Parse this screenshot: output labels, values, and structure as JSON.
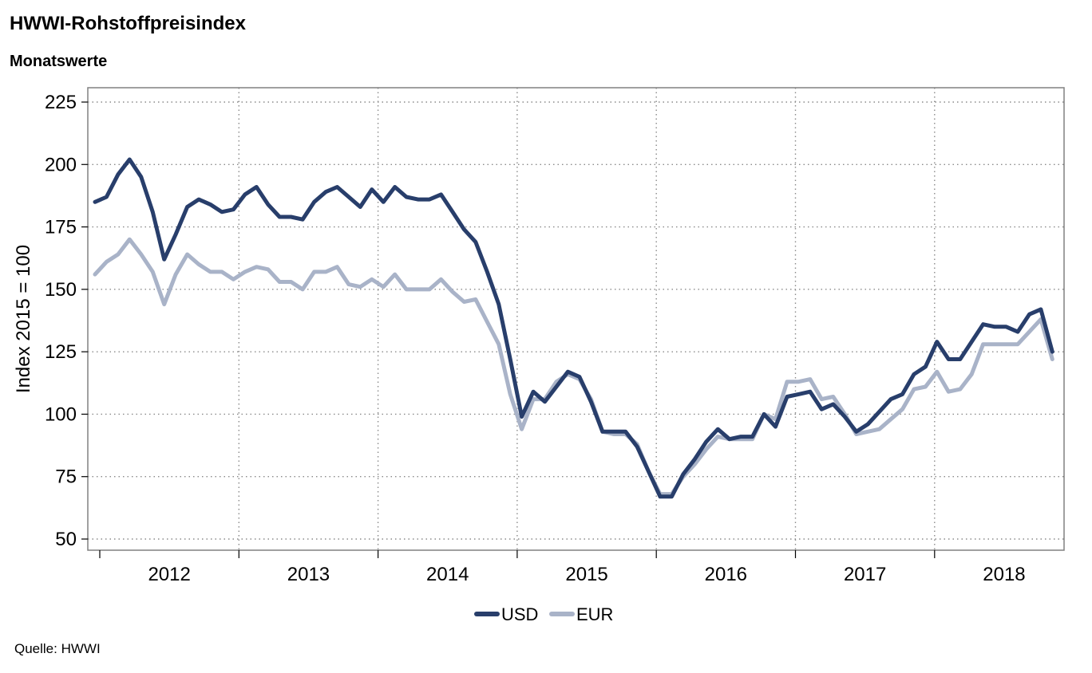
{
  "title": "HWWI-Rohstoffpreisindex",
  "subtitle": "Monatswerte",
  "source": "Quelle: HWWI",
  "chart_data": {
    "type": "line",
    "title": "HWWI-Rohstoffpreisindex",
    "subtitle": "Monatswerte",
    "xlabel": "",
    "ylabel": "Index 2015 = 100",
    "ylim": [
      45,
      230
    ],
    "yticks": [
      50,
      75,
      100,
      125,
      150,
      175,
      200,
      225
    ],
    "xticks": [
      "2012",
      "2013",
      "2014",
      "2015",
      "2016",
      "2017",
      "2018"
    ],
    "x_start": "2012-01",
    "x_end": "2018-11",
    "grid": true,
    "legend_position": "bottom",
    "colors": {
      "USD": "#283e6b",
      "EUR": "#a9b3c8"
    },
    "series": [
      {
        "name": "USD",
        "values": [
          185,
          187,
          196,
          202,
          195,
          181,
          162,
          172,
          183,
          186,
          184,
          181,
          182,
          188,
          191,
          184,
          179,
          179,
          178,
          185,
          189,
          191,
          187,
          183,
          190,
          185,
          191,
          187,
          186,
          186,
          188,
          181,
          174,
          169,
          157,
          144,
          122,
          99,
          109,
          105,
          111,
          117,
          115,
          105,
          93,
          93,
          93,
          87,
          77,
          67,
          67,
          76,
          82,
          89,
          94,
          90,
          91,
          91,
          100,
          95,
          107,
          108,
          109,
          102,
          104,
          99,
          93,
          96,
          101,
          106,
          108,
          116,
          119,
          129,
          122,
          122,
          129,
          136,
          135,
          135,
          133,
          140,
          142,
          125
        ]
      },
      {
        "name": "EUR",
        "values": [
          156,
          161,
          164,
          170,
          164,
          157,
          144,
          156,
          164,
          160,
          157,
          157,
          154,
          157,
          159,
          158,
          153,
          153,
          150,
          157,
          157,
          159,
          152,
          151,
          154,
          151,
          156,
          150,
          150,
          150,
          154,
          149,
          145,
          146,
          137,
          128,
          108,
          94,
          106,
          106,
          113,
          116,
          114,
          106,
          93,
          92,
          92,
          88,
          77,
          68,
          68,
          75,
          80,
          86,
          91,
          90,
          90,
          90,
          100,
          98,
          113,
          113,
          114,
          106,
          107,
          100,
          92,
          93,
          94,
          98,
          102,
          110,
          111,
          117,
          109,
          110,
          116,
          128,
          128,
          128,
          128,
          133,
          138,
          122
        ]
      }
    ]
  }
}
